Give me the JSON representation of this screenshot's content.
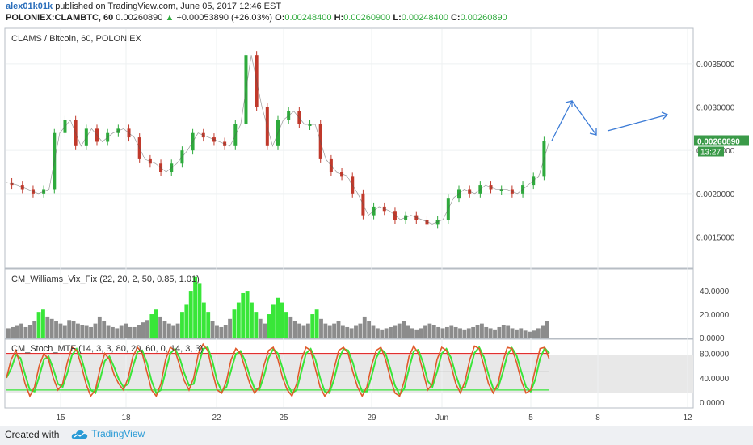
{
  "header": {
    "author": "alex01k01k",
    "published": "published on TradingView.com, June 05, 2017 12:46 EST",
    "symbol": "POLONIEX:CLAMBTC, 60",
    "last": "0.00260890",
    "change_arrow": "▲",
    "change": "+0.00053890 (+26.03%)",
    "o_label": "O:",
    "o": "0.00248400",
    "h_label": "H:",
    "h": "0.00260900",
    "l_label": "L:",
    "l": "0.00248400",
    "c_label": "C:",
    "c": "0.00260890"
  },
  "footer": {
    "created_with": "Created with",
    "brand": "TradingView"
  },
  "colors": {
    "accent": "#2a6ebb",
    "up": "#2eaa3c",
    "down": "#c0392b",
    "vix_spike": "#39e639",
    "vix_bar": "#8c8c8c",
    "stoch_line": "#e05a2b",
    "stoch_signal": "#39e639",
    "upper_band": "#e03030",
    "lower_band": "#39e639",
    "price_label_bg": "#3a9a48",
    "arrow": "#3b7bd6"
  },
  "chart_data": [
    {
      "type": "line",
      "title": "CLAMS / Bitcoin, 60, POLONIEX",
      "x_tick_labels": [
        "15",
        "18",
        "22",
        "25",
        "29",
        "Jun",
        "5",
        "8",
        "12"
      ],
      "y_tick_labels": [
        "0.0035000",
        "0.0030000",
        "0.0025000",
        "0.0020000",
        "0.0015000"
      ],
      "y_ticks": [
        0.0035,
        0.003,
        0.0025,
        0.002,
        0.0015
      ],
      "ylim": [
        0.00115,
        0.0039
      ],
      "last_price": 0.0026089,
      "last_price_label": "0.00260890",
      "countdown_label": "13:27",
      "x": [
        "May 11",
        "May 11.5",
        "May 12",
        "May 12.5",
        "May 13",
        "May 13.5",
        "May 14",
        "May 14.5",
        "May 15",
        "May 15.5",
        "May 16",
        "May 16.5",
        "May 17",
        "May 17.5",
        "May 18",
        "May 18.5",
        "May 19",
        "May 19.5",
        "May 20",
        "May 20.5",
        "May 21",
        "May 21.5",
        "May 22",
        "May 22.5",
        "May 23",
        "May 23.5",
        "May 24",
        "May 24.5",
        "May 25",
        "May 25.5",
        "May 26",
        "May 26.5",
        "May 27",
        "May 27.5",
        "May 28",
        "May 28.5",
        "May 29",
        "May 29.5",
        "May 30",
        "May 30.5",
        "May 31",
        "May 31.5",
        "Jun 1",
        "Jun 1.5",
        "Jun 2",
        "Jun 2.5",
        "Jun 3",
        "Jun 3.5",
        "Jun 4",
        "Jun 4.5",
        "Jun 5",
        "Jun 5.3"
      ],
      "values": [
        0.00213,
        0.0021,
        0.00205,
        0.002,
        0.00205,
        0.0027,
        0.00285,
        0.00255,
        0.00275,
        0.0026,
        0.0027,
        0.00275,
        0.00265,
        0.0024,
        0.00235,
        0.00225,
        0.00235,
        0.0025,
        0.0027,
        0.00265,
        0.0026,
        0.00255,
        0.0028,
        0.0036,
        0.003,
        0.00255,
        0.00285,
        0.00295,
        0.0028,
        0.0028,
        0.0024,
        0.00225,
        0.0022,
        0.002,
        0.00175,
        0.00185,
        0.0018,
        0.0017,
        0.00175,
        0.0017,
        0.00165,
        0.0017,
        0.00195,
        0.00205,
        0.002,
        0.0021,
        0.00205,
        0.00205,
        0.002,
        0.0021,
        0.0022,
        0.00261
      ]
    },
    {
      "type": "bar",
      "title": "CM_Williams_Vix_Fix (22, 20, 2, 50, 0.85, 1.01)",
      "y_tick_labels": [
        "40.0000",
        "20.0000",
        "0.0000"
      ],
      "y_ticks": [
        40,
        20,
        0
      ],
      "ylim": [
        0,
        58
      ],
      "values": [
        8,
        9,
        10,
        12,
        9,
        11,
        14,
        22,
        24,
        18,
        16,
        14,
        12,
        10,
        15,
        14,
        12,
        11,
        10,
        9,
        12,
        18,
        14,
        10,
        9,
        8,
        10,
        12,
        9,
        9,
        11,
        13,
        15,
        20,
        24,
        18,
        14,
        12,
        10,
        12,
        22,
        28,
        40,
        52,
        46,
        30,
        22,
        14,
        10,
        9,
        11,
        16,
        24,
        30,
        38,
        40,
        30,
        22,
        16,
        12,
        20,
        28,
        34,
        30,
        22,
        18,
        14,
        12,
        10,
        12,
        20,
        24,
        16,
        12,
        10,
        12,
        14,
        10,
        9,
        8,
        10,
        12,
        18,
        14,
        10,
        8,
        7,
        8,
        9,
        10,
        12,
        14,
        10,
        8,
        7,
        8,
        10,
        12,
        11,
        9,
        8,
        9,
        10,
        9,
        8,
        7,
        8,
        9,
        11,
        12,
        9,
        8,
        7,
        9,
        11,
        10,
        8,
        7,
        8,
        6,
        5,
        6,
        8,
        10,
        14
      ]
    },
    {
      "type": "line",
      "title": "CM_Stoch_MTF (14, 3, 3, 80, 20, 60, 0, 14, 3, 3)",
      "y_tick_labels": [
        "80.0000",
        "40.0000",
        "0.0000"
      ],
      "y_ticks": [
        80,
        40,
        0
      ],
      "ylim": [
        -8,
        102
      ],
      "upper_band": 80,
      "lower_band": 20,
      "mid_band": 50,
      "values": [
        40,
        70,
        85,
        60,
        30,
        10,
        25,
        60,
        80,
        70,
        40,
        20,
        30,
        65,
        90,
        85,
        60,
        30,
        10,
        20,
        55,
        80,
        70,
        45,
        30,
        20,
        40,
        75,
        90,
        80,
        50,
        20,
        10,
        30,
        70,
        90,
        85,
        60,
        35,
        20,
        40,
        80,
        95,
        85,
        50,
        20,
        15,
        35,
        70,
        88,
        80,
        55,
        30,
        15,
        25,
        60,
        85,
        90,
        70,
        40,
        20,
        10,
        30,
        70,
        90,
        85,
        55,
        25,
        10,
        20,
        55,
        85,
        90,
        80,
        50,
        25,
        10,
        25,
        60,
        85,
        90,
        70,
        40,
        15,
        10,
        35,
        75,
        92,
        80,
        50,
        20,
        30,
        70,
        90,
        85,
        60,
        30,
        15,
        35,
        70,
        92,
        88,
        60,
        30,
        15,
        30,
        65,
        90,
        88,
        65,
        35,
        15,
        20,
        55,
        88,
        90,
        70
      ]
    }
  ]
}
